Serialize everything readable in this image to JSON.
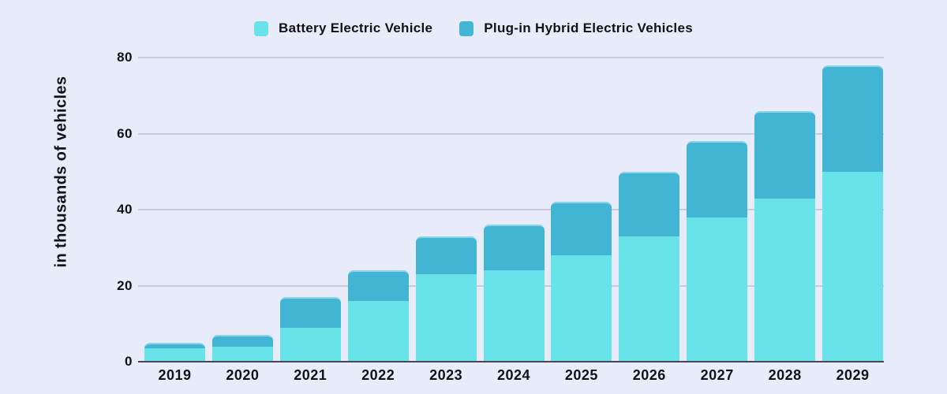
{
  "colors": {
    "background": "#E8EBFA",
    "gridline": "#C9CCDA",
    "axis_line": "#47474F",
    "text": "#121217"
  },
  "chart_data": {
    "type": "bar",
    "stacked": true,
    "categories": [
      "2019",
      "2020",
      "2021",
      "2022",
      "2023",
      "2024",
      "2025",
      "2026",
      "2027",
      "2028",
      "2029"
    ],
    "series": [
      {
        "name": "Battery Electric Vehicle",
        "color": "#68E3E9",
        "values": [
          3.5,
          4,
          9,
          16,
          23,
          24,
          28,
          33,
          38,
          43,
          50
        ]
      },
      {
        "name": "Plug-in Hybrid Electric Vehicles",
        "color": "#42B5D5",
        "values": [
          1.5,
          3,
          8,
          8,
          10,
          12,
          14,
          17,
          20,
          23,
          28
        ]
      }
    ],
    "totals": [
      5,
      7,
      17,
      24,
      33,
      36,
      42,
      50,
      58,
      66,
      78
    ],
    "title": "",
    "xlabel": "",
    "ylabel": "in thousands of vehicles",
    "yticks": [
      0,
      20,
      40,
      60,
      80
    ],
    "ylim": [
      0,
      80
    ],
    "grid": true,
    "legend_position": "top"
  }
}
